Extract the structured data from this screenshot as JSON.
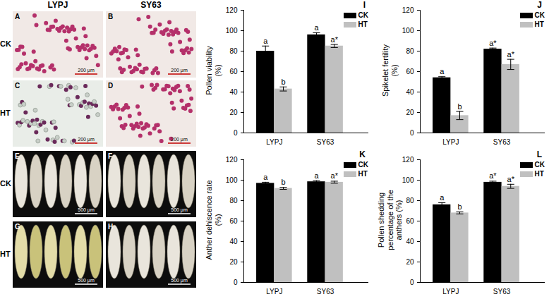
{
  "column_labels": [
    "LYPJ",
    "SY63"
  ],
  "row_labels": [
    "CK",
    "HT",
    "CK",
    "HT"
  ],
  "panels": [
    {
      "label": "A",
      "scale_bar": "200 μm"
    },
    {
      "label": "B",
      "scale_bar": "200 μm"
    },
    {
      "label": "C",
      "scale_bar": "200 μm"
    },
    {
      "label": "D",
      "scale_bar": "200 μm"
    },
    {
      "label": "E",
      "scale_bar": "500 μm"
    },
    {
      "label": "F",
      "scale_bar": "500 μm"
    },
    {
      "label": "G",
      "scale_bar": "500 μm"
    },
    {
      "label": "H",
      "scale_bar": "500 μm"
    }
  ],
  "chart_data": [
    {
      "type": "bar",
      "title": "I",
      "ylabel": "Pollen viability\n(%)",
      "categories": [
        "LYPJ",
        "SY63"
      ],
      "series": [
        {
          "name": "CK",
          "color": "#000000",
          "values": [
            80,
            96
          ],
          "errors": [
            5,
            2
          ],
          "labels": [
            "a",
            "a"
          ]
        },
        {
          "name": "HT",
          "color": "#c0c0c0",
          "values": [
            43,
            85
          ],
          "errors": [
            2,
            1.5
          ],
          "labels": [
            "b",
            "a*"
          ]
        }
      ],
      "ylim": [
        0,
        120
      ],
      "yticks": [
        0,
        20,
        40,
        60,
        80,
        100,
        120
      ],
      "legend": "top-right"
    },
    {
      "type": "bar",
      "title": "J",
      "ylabel": "Spikelet fertility\n(%)",
      "categories": [
        "LYPJ",
        "SY63"
      ],
      "series": [
        {
          "name": "CK",
          "color": "#000000",
          "values": [
            54,
            82
          ],
          "errors": [
            1,
            1
          ],
          "labels": [
            "a",
            "a*"
          ]
        },
        {
          "name": "HT",
          "color": "#c0c0c0",
          "values": [
            17,
            67
          ],
          "errors": [
            4,
            5
          ],
          "labels": [
            "b",
            "a*"
          ]
        }
      ],
      "ylim": [
        0,
        120
      ],
      "yticks": [
        0,
        20,
        40,
        60,
        80,
        100,
        120
      ],
      "legend": "top-right"
    },
    {
      "type": "bar",
      "title": "K",
      "ylabel": "Anther dehiscence rate\n(%)",
      "categories": [
        "LYPJ",
        "SY63"
      ],
      "series": [
        {
          "name": "CK",
          "color": "#000000",
          "values": [
            97,
            98.5
          ],
          "errors": [
            1,
            1
          ],
          "labels": [
            "a",
            "a"
          ]
        },
        {
          "name": "HT",
          "color": "#c0c0c0",
          "values": [
            92,
            98
          ],
          "errors": [
            1,
            1
          ],
          "labels": [
            "b",
            "a*"
          ]
        }
      ],
      "ylim": [
        0,
        120
      ],
      "yticks": [
        0,
        20,
        40,
        60,
        80,
        100,
        120
      ],
      "legend": "top-right"
    },
    {
      "type": "bar",
      "title": "L",
      "ylabel": "Pollen shedding\npercentage of the\nanthers (%)",
      "categories": [
        "LYPJ",
        "SY63"
      ],
      "series": [
        {
          "name": "CK",
          "color": "#000000",
          "values": [
            76,
            98
          ],
          "errors": [
            2,
            1
          ],
          "labels": [
            "a",
            "a*"
          ]
        },
        {
          "name": "HT",
          "color": "#c0c0c0",
          "values": [
            68,
            94
          ],
          "errors": [
            1,
            2
          ],
          "labels": [
            "b",
            "a*"
          ]
        }
      ],
      "ylim": [
        0,
        120
      ],
      "yticks": [
        0,
        20,
        40,
        60,
        80,
        100,
        120
      ],
      "legend": "top-right"
    }
  ]
}
